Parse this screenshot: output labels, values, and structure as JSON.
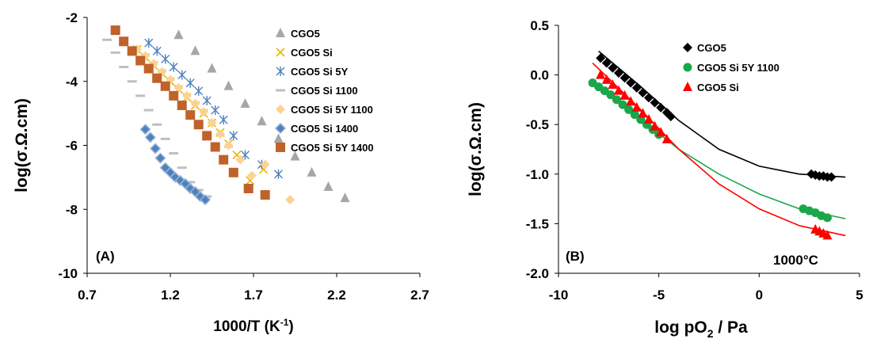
{
  "chart_data": [
    {
      "type": "scatter",
      "panel_label": "(A)",
      "xlabel": "1000/T (K",
      "xlabel_sup": "-1",
      "xlabel_end": ")",
      "ylabel": "log(σ.Ω.cm)",
      "xlim": [
        0.7,
        2.7
      ],
      "ylim": [
        -10,
        -2
      ],
      "xticks": [
        "0.7",
        "1.2",
        "1.7",
        "2.2",
        "2.7"
      ],
      "yticks": [
        "-2",
        "-4",
        "-6",
        "-8",
        "-10"
      ],
      "grid": false,
      "legend_position": "top-right",
      "series": [
        {
          "name": "CGO5",
          "color": "#a6a6a6",
          "marker": "triangle",
          "x": [
            1.25,
            1.35,
            1.45,
            1.55,
            1.65,
            1.75,
            1.85,
            1.95,
            2.05,
            2.15,
            2.25
          ],
          "y": [
            -2.55,
            -3.05,
            -3.6,
            -4.15,
            -4.7,
            -5.25,
            -5.8,
            -6.35,
            -6.85,
            -7.3,
            -7.65
          ]
        },
        {
          "name": "CGO5 Si",
          "color": "#e6b800",
          "marker": "x",
          "x": [
            1.0,
            1.05,
            1.1,
            1.15,
            1.2,
            1.25,
            1.3,
            1.35,
            1.4,
            1.45,
            1.5,
            1.55,
            1.6,
            1.68,
            1.76
          ],
          "y": [
            -3.0,
            -3.25,
            -3.5,
            -3.75,
            -4.0,
            -4.25,
            -4.5,
            -4.75,
            -5.0,
            -5.3,
            -5.6,
            -5.95,
            -6.3,
            -7.1,
            -6.75
          ]
        },
        {
          "name": "CGO5 Si 5Y",
          "color": "#4f81bd",
          "marker": "star",
          "x": [
            1.07,
            1.12,
            1.17,
            1.22,
            1.27,
            1.32,
            1.37,
            1.42,
            1.47,
            1.52,
            1.58,
            1.65,
            1.75,
            1.85
          ],
          "y": [
            -2.8,
            -3.05,
            -3.3,
            -3.55,
            -3.8,
            -4.05,
            -4.3,
            -4.6,
            -4.9,
            -5.2,
            -5.7,
            -6.3,
            -6.6,
            -6.9
          ]
        },
        {
          "name": "CGO5 Si 1100",
          "color": "#bfbfbf",
          "marker": "dash",
          "x": [
            0.82,
            0.87,
            0.92,
            0.97,
            1.02,
            1.07,
            1.12,
            1.17,
            1.22,
            1.27,
            1.32,
            1.37,
            1.42
          ],
          "y": [
            -2.7,
            -3.1,
            -3.55,
            -4.0,
            -4.45,
            -4.9,
            -5.35,
            -5.8,
            -6.25,
            -6.7,
            -7.15,
            -7.4,
            -7.6
          ]
        },
        {
          "name": "CGO5 Si 5Y 1100",
          "color": "#fcd292",
          "marker": "diamond",
          "x": [
            1.0,
            1.05,
            1.1,
            1.15,
            1.2,
            1.25,
            1.3,
            1.35,
            1.4,
            1.45,
            1.5,
            1.55,
            1.62,
            1.69,
            1.77,
            1.92
          ],
          "y": [
            -3.0,
            -3.2,
            -3.45,
            -3.7,
            -3.95,
            -4.2,
            -4.45,
            -4.7,
            -4.95,
            -5.3,
            -5.65,
            -6.0,
            -6.45,
            -6.95,
            -6.6,
            -7.7
          ]
        },
        {
          "name": "CGO5 Si 1400",
          "color": "#4f81bd",
          "marker": "diamond-blue",
          "x": [
            1.05,
            1.08,
            1.11,
            1.14,
            1.17,
            1.2,
            1.23,
            1.26,
            1.29,
            1.32,
            1.35,
            1.38,
            1.41
          ],
          "y": [
            -5.5,
            -5.75,
            -6.1,
            -6.4,
            -6.7,
            -6.85,
            -7.0,
            -7.1,
            -7.2,
            -7.35,
            -7.45,
            -7.6,
            -7.7
          ]
        },
        {
          "name": "CGO5 Si 5Y 1400",
          "color": "#c0622a",
          "marker": "square",
          "x": [
            0.87,
            0.92,
            0.97,
            1.02,
            1.07,
            1.12,
            1.17,
            1.22,
            1.27,
            1.32,
            1.37,
            1.42,
            1.47,
            1.52,
            1.58,
            1.67,
            1.77
          ],
          "y": [
            -2.4,
            -2.75,
            -3.05,
            -3.35,
            -3.6,
            -3.9,
            -4.15,
            -4.45,
            -4.75,
            -5.05,
            -5.35,
            -5.7,
            -6.05,
            -6.45,
            -6.85,
            -7.35,
            -7.55
          ]
        }
      ]
    },
    {
      "type": "scatter",
      "panel_label": "(B)",
      "annotation": "1000°C",
      "xlabel": "log pO",
      "xlabel_sub": "2",
      "xlabel_end": " / Pa",
      "ylabel": "log(σ.Ω.cm)",
      "xlim": [
        -10,
        5
      ],
      "ylim": [
        -2.0,
        0.5
      ],
      "xticks": [
        "-10",
        "-5",
        "0",
        "5"
      ],
      "yticks": [
        "0.5",
        "0.0",
        "-0.5",
        "-1.0",
        "-1.5",
        "-2.0"
      ],
      "grid": false,
      "legend_position": "top-left",
      "series": [
        {
          "name": "CGO5",
          "color": "#000000",
          "marker": "diamond",
          "x": [
            -7.9,
            -7.6,
            -7.3,
            -7.0,
            -6.7,
            -6.4,
            -6.1,
            -5.8,
            -5.5,
            -5.2,
            -4.9,
            -4.6,
            -4.4,
            2.6,
            2.8,
            3.0,
            3.2,
            3.4,
            3.6
          ],
          "y": [
            0.17,
            0.12,
            0.07,
            0.02,
            -0.03,
            -0.08,
            -0.13,
            -0.18,
            -0.23,
            -0.28,
            -0.33,
            -0.38,
            -0.42,
            -1.0,
            -1.01,
            -1.02,
            -1.02,
            -1.03,
            -1.03
          ],
          "fit_x": [
            -8.0,
            -6.0,
            -4.0,
            -2.0,
            0.0,
            2.0,
            4.3
          ],
          "fit_y": [
            0.24,
            -0.1,
            -0.46,
            -0.75,
            -0.92,
            -1.0,
            -1.03
          ]
        },
        {
          "name": "CGO5 Si 5Y 1100",
          "color": "#1aa64a",
          "marker": "circle",
          "x": [
            -8.3,
            -8.0,
            -7.7,
            -7.4,
            -7.1,
            -6.8,
            -6.5,
            -6.2,
            -5.9,
            -5.6,
            -5.3,
            -5.0,
            2.2,
            2.5,
            2.8,
            3.1,
            3.4
          ],
          "y": [
            -0.08,
            -0.12,
            -0.16,
            -0.2,
            -0.25,
            -0.3,
            -0.35,
            -0.4,
            -0.45,
            -0.5,
            -0.55,
            -0.6,
            -1.35,
            -1.37,
            -1.39,
            -1.42,
            -1.44
          ],
          "fit_x": [
            -8.3,
            -6.0,
            -4.0,
            -2.0,
            0.0,
            2.0,
            4.3
          ],
          "fit_y": [
            -0.05,
            -0.43,
            -0.75,
            -1.0,
            -1.2,
            -1.35,
            -1.45
          ]
        },
        {
          "name": "CGO5 Si",
          "color": "#ff0000",
          "marker": "triangle",
          "x": [
            -7.9,
            -7.6,
            -7.3,
            -7.0,
            -6.7,
            -6.4,
            -6.1,
            -5.8,
            -5.5,
            -5.2,
            -4.9,
            -4.6,
            2.8,
            3.0,
            3.2,
            3.4
          ],
          "y": [
            0.0,
            -0.05,
            -0.1,
            -0.16,
            -0.21,
            -0.27,
            -0.33,
            -0.39,
            -0.45,
            -0.52,
            -0.58,
            -0.65,
            -1.56,
            -1.58,
            -1.6,
            -1.62
          ],
          "fit_x": [
            -8.3,
            -6.0,
            -4.0,
            -2.0,
            0.0,
            2.0,
            4.3
          ],
          "fit_y": [
            0.12,
            -0.33,
            -0.75,
            -1.1,
            -1.35,
            -1.52,
            -1.62
          ]
        }
      ]
    }
  ]
}
